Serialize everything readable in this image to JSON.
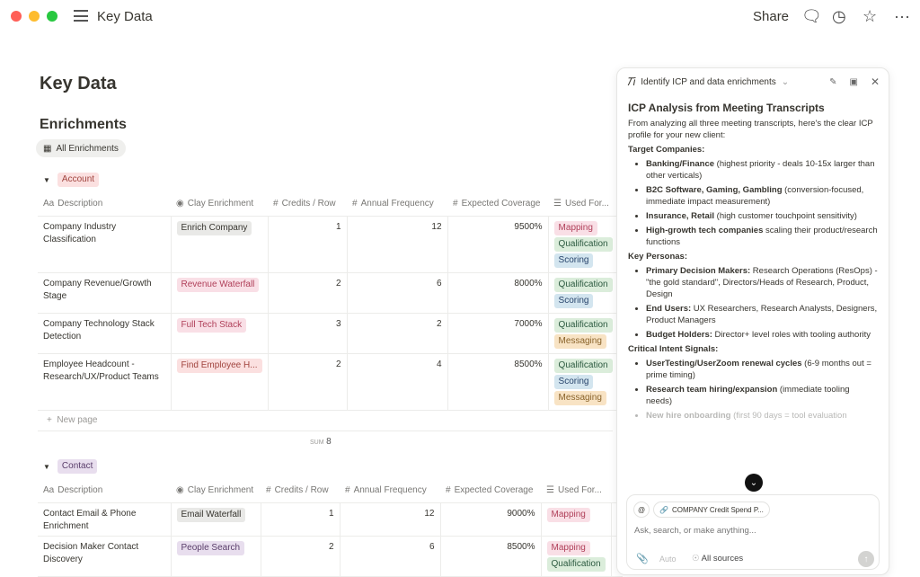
{
  "window": {
    "title": "Key Data",
    "share": "Share",
    "icons": [
      "comment-icon",
      "history-icon",
      "star-icon",
      "more-icon"
    ],
    "traffic": [
      "#ff5f57",
      "#febc2e",
      "#28c840"
    ]
  },
  "page": {
    "title": "Key Data",
    "section": "Enrichments",
    "view_tab": "All Enrichments"
  },
  "columns": [
    "Description",
    "Clay Enrichment",
    "Credits / Row",
    "Annual Frequency",
    "Expected Coverage",
    "Used For..."
  ],
  "groups": [
    {
      "name": "Account",
      "color": "red",
      "rows": [
        {
          "description": "Company Industry Classification",
          "enrichment": "Enrich Company",
          "enrichment_color": "gray",
          "credits": "1",
          "frequency": "12",
          "coverage": "9500%",
          "used_for": [
            [
              "Mapping",
              "pink"
            ],
            [
              "Qualification",
              "green"
            ],
            [
              "Scoring",
              "blue"
            ]
          ]
        },
        {
          "description": "Company Revenue/Growth Stage",
          "enrichment": "Revenue Waterfall",
          "enrichment_color": "pink",
          "credits": "2",
          "frequency": "6",
          "coverage": "8000%",
          "used_for": [
            [
              "Qualification",
              "green"
            ],
            [
              "Scoring",
              "blue"
            ]
          ]
        },
        {
          "description": "Company Technology Stack Detection",
          "enrichment": "Full Tech Stack",
          "enrichment_color": "pink",
          "credits": "3",
          "frequency": "2",
          "coverage": "7000%",
          "used_for": [
            [
              "Qualification",
              "green"
            ],
            [
              "Messaging",
              "yellow"
            ]
          ]
        },
        {
          "description": "Employee Headcount - Research/UX/Product Teams",
          "enrichment": "Find Employee H...",
          "enrichment_color": "red",
          "credits": "2",
          "frequency": "4",
          "coverage": "8500%",
          "used_for": [
            [
              "Qualification",
              "green"
            ],
            [
              "Scoring",
              "blue"
            ],
            [
              "Messaging",
              "yellow"
            ]
          ]
        }
      ],
      "new_page": "New page",
      "sum_label": "SUM",
      "sum_value": "8"
    },
    {
      "name": "Contact",
      "color": "purple",
      "rows": [
        {
          "description": "Contact Email & Phone Enrichment",
          "enrichment": "Email Waterfall",
          "enrichment_color": "gray",
          "credits": "1",
          "frequency": "12",
          "coverage": "9000%",
          "used_for": [
            [
              "Mapping",
              "pink"
            ]
          ]
        },
        {
          "description": "Decision Maker Contact Discovery",
          "enrichment": "People Search",
          "enrichment_color": "purple",
          "credits": "2",
          "frequency": "6",
          "coverage": "8500%",
          "used_for": [
            [
              "Mapping",
              "pink"
            ],
            [
              "Qualification",
              "green"
            ]
          ]
        }
      ]
    }
  ],
  "assistant": {
    "thread_title": "Identify ICP and data enrichments",
    "heading": "ICP Analysis from Meeting Transcripts",
    "intro": "From analyzing all three meeting transcripts, here's the clear ICP profile for your new client:",
    "sections": [
      {
        "title": "Target Companies:",
        "items": [
          [
            "Banking/Finance",
            " (highest priority - deals 10-15x larger than other verticals)"
          ],
          [
            "B2C Software, Gaming, Gambling",
            " (conversion-focused, immediate impact measurement)"
          ],
          [
            "Insurance, Retail",
            " (high customer touchpoint sensitivity)"
          ],
          [
            "High-growth tech companies",
            " scaling their product/research functions"
          ]
        ]
      },
      {
        "title": "Key Personas:",
        "items": [
          [
            "Primary Decision Makers:",
            " Research Operations (ResOps) - \"the gold standard\", Directors/Heads of Research, Product, Design"
          ],
          [
            "End Users:",
            " UX Researchers, Research Analysts, Designers, Product Managers"
          ],
          [
            "Budget Holders:",
            " Director+ level roles with tooling authority"
          ]
        ]
      },
      {
        "title": "Critical Intent Signals:",
        "items": [
          [
            "UserTesting/UserZoom renewal cycles",
            " (6-9 months out = prime timing)"
          ],
          [
            "Research team hiring/expansion",
            " (immediate tooling needs)"
          ],
          [
            "New hire onboarding",
            " (first 90 days = tool evaluation"
          ]
        ]
      }
    ],
    "context_chip": "COMPANY Credit Spend P...",
    "input_placeholder": "Ask, search, or make anything...",
    "mode": "Auto",
    "sources": "All sources"
  }
}
